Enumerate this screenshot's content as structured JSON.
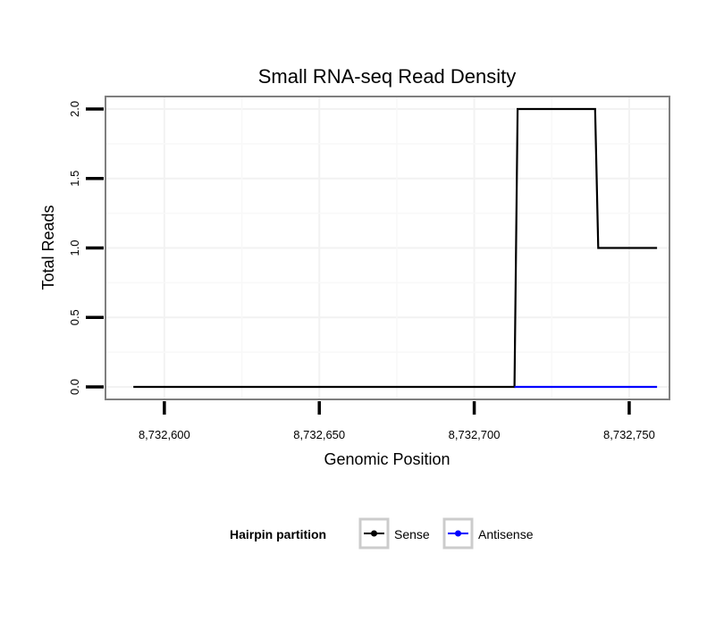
{
  "chart_data": {
    "type": "line",
    "title": "Small RNA-seq Read Density",
    "xlabel": "Genomic Position",
    "ylabel": "Total Reads",
    "xlim": [
      8732581,
      8732763
    ],
    "ylim": [
      -0.09,
      2.09
    ],
    "x_ticks": [
      8732600,
      8732650,
      8732700,
      8732750
    ],
    "x_tick_labels": [
      "8,732,600",
      "8,732,650",
      "8,732,700",
      "8,732,750"
    ],
    "y_ticks": [
      0,
      0.5,
      1,
      1.5,
      2
    ],
    "y_tick_labels": [
      "0.0",
      "0.5",
      "1.0",
      "1.5",
      "2.0"
    ],
    "grid": true,
    "legend": {
      "title": "Hairpin partition",
      "position": "bottom"
    },
    "series": [
      {
        "name": "Sense",
        "color": "#000000",
        "x": [
          8732590,
          8732713,
          8732714,
          8732739,
          8732740,
          8732759
        ],
        "y": [
          0,
          0,
          2,
          2,
          1,
          1
        ]
      },
      {
        "name": "Antisense",
        "color": "#0000ff",
        "x": [
          8732713,
          8732759
        ],
        "y": [
          0,
          0
        ]
      }
    ]
  }
}
